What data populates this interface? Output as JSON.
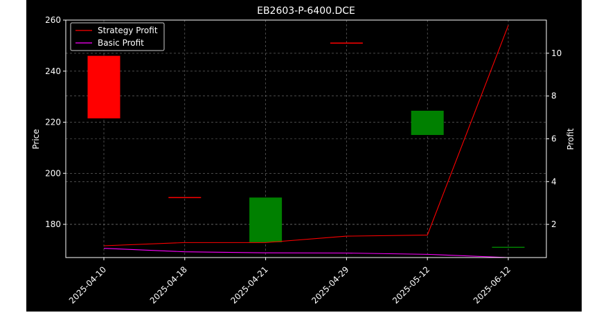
{
  "chart_data": {
    "type": "candlestick",
    "title": "EB2603-P-6400.DCE",
    "categories": [
      "2025-04-10",
      "2025-04-18",
      "2025-04-21",
      "2025-04-29",
      "2025-05-12",
      "2025-06-12"
    ],
    "ylabel": "Price",
    "ylim": [
      167,
      260
    ],
    "yticks": [
      180,
      200,
      220,
      240,
      260
    ],
    "y2label": "Profit",
    "y2lim": [
      0.45,
      11.55
    ],
    "y2ticks": [
      2,
      4,
      6,
      8,
      10
    ],
    "grid": true,
    "legend_position": "top-left",
    "candles": [
      {
        "date": "2025-04-10",
        "open": 246.0,
        "close": 221.5,
        "high": 246.0,
        "low": 221.5,
        "color": "#ff0000"
      },
      {
        "date": "2025-04-18",
        "open": 190.5,
        "close": 190.5,
        "high": 190.5,
        "low": 190.5,
        "color": "#ff0000"
      },
      {
        "date": "2025-04-21",
        "open": 173.0,
        "close": 190.5,
        "high": 190.5,
        "low": 173.0,
        "color": "#008000"
      },
      {
        "date": "2025-04-29",
        "open": 251.0,
        "close": 251.0,
        "high": 251.0,
        "low": 251.0,
        "color": "#ff0000"
      },
      {
        "date": "2025-05-12",
        "open": 215.0,
        "close": 224.5,
        "high": 224.5,
        "low": 215.0,
        "color": "#008000"
      },
      {
        "date": "2025-06-12",
        "open": 171.0,
        "close": 171.0,
        "high": 171.0,
        "low": 171.0,
        "color": "#008000"
      }
    ],
    "series": [
      {
        "name": "Strategy Profit",
        "color": "#ff0000",
        "axis": "right",
        "values": [
          1.0,
          1.15,
          1.15,
          1.45,
          1.5,
          11.3
        ]
      },
      {
        "name": "Basic Profit",
        "color": "#ff00ff",
        "axis": "right",
        "values": [
          0.88,
          0.72,
          0.67,
          0.66,
          0.6,
          0.45
        ]
      }
    ]
  },
  "colors": {
    "background": "#000000",
    "axes": "#ffffff",
    "grid": "#777777"
  }
}
